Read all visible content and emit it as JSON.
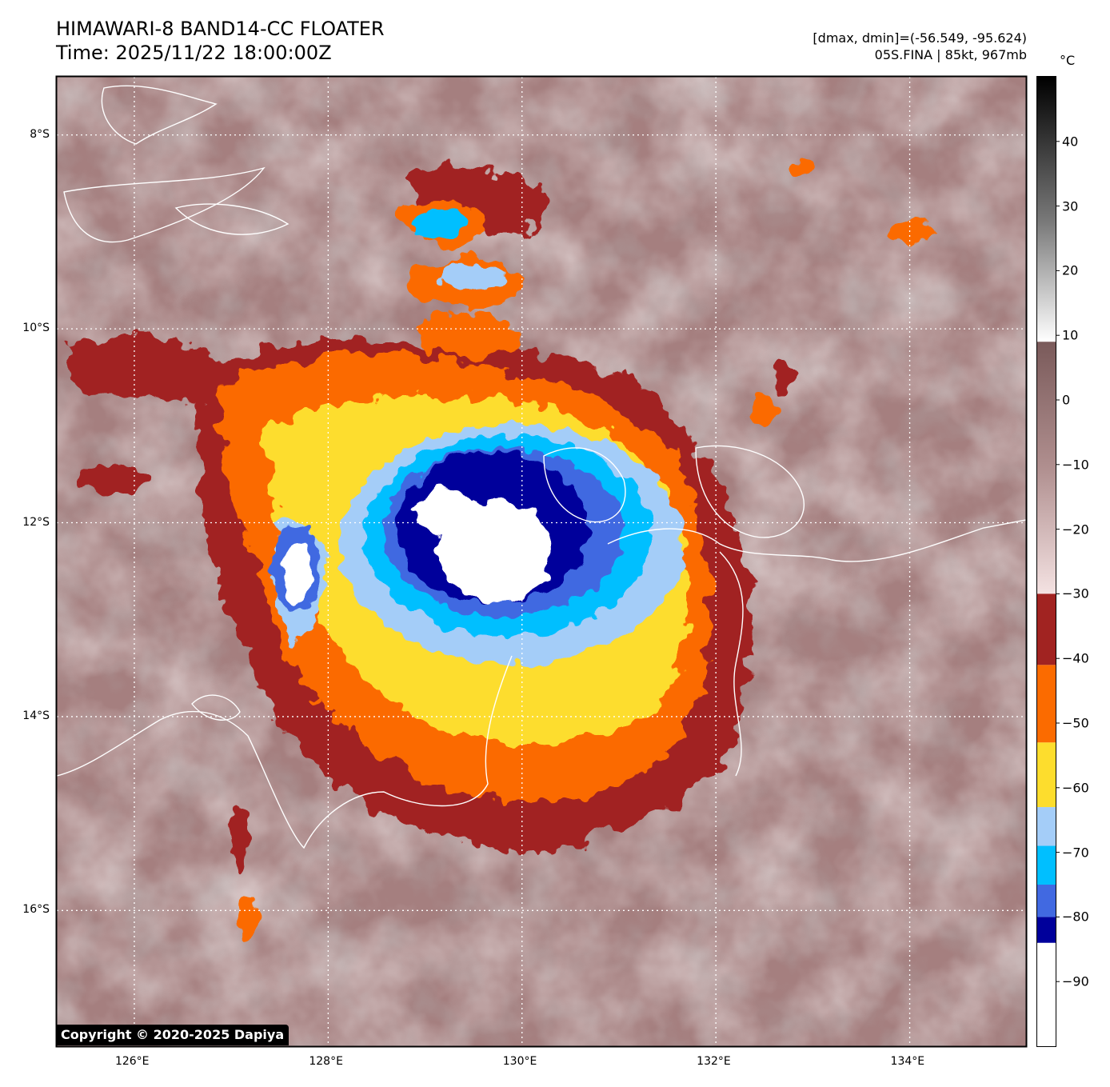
{
  "header": {
    "title": "HIMAWARI-8 BAND14-CC FLOATER",
    "time": "Time: 2025/11/22 18:00:00Z",
    "range": "[dmax, dmin]=(-56.549, -95.624)",
    "storm": "05S.FINA | 85kt, 967mb"
  },
  "map": {
    "lon_range": [
      125.2,
      135.2
    ],
    "lat_range": [
      -17.4,
      -7.4
    ],
    "lat_labels": [
      "8°S",
      "10°S",
      "12°S",
      "14°S",
      "16°S"
    ],
    "lon_labels": [
      "126°E",
      "128°E",
      "130°E",
      "132°E",
      "134°E"
    ],
    "grid": "dotted white",
    "center_lon": 130.0,
    "center_lat": -12.3
  },
  "colorbar": {
    "unit": "°C",
    "ticks": [
      "40",
      "30",
      "20",
      "10",
      "0",
      "−10",
      "−20",
      "−30",
      "−40",
      "−50",
      "−60",
      "−70",
      "−80",
      "−90"
    ],
    "range": [
      -100,
      50
    ],
    "bands": [
      {
        "from": -100,
        "to": -84,
        "color": "#ffffff"
      },
      {
        "from": -84,
        "to": -80,
        "color": "#00009b"
      },
      {
        "from": -80,
        "to": -75,
        "color": "#4169e1"
      },
      {
        "from": -75,
        "to": -69,
        "color": "#00bfff"
      },
      {
        "from": -69,
        "to": -63,
        "color": "#a4cdf8"
      },
      {
        "from": -63,
        "to": -53,
        "color": "#fddd2d"
      },
      {
        "from": -53,
        "to": -41,
        "color": "#fb6b00"
      },
      {
        "from": -41,
        "to": -30,
        "color": "#a12321"
      }
    ]
  },
  "copyright": "Copyright © 2020-2025 Dapiya"
}
